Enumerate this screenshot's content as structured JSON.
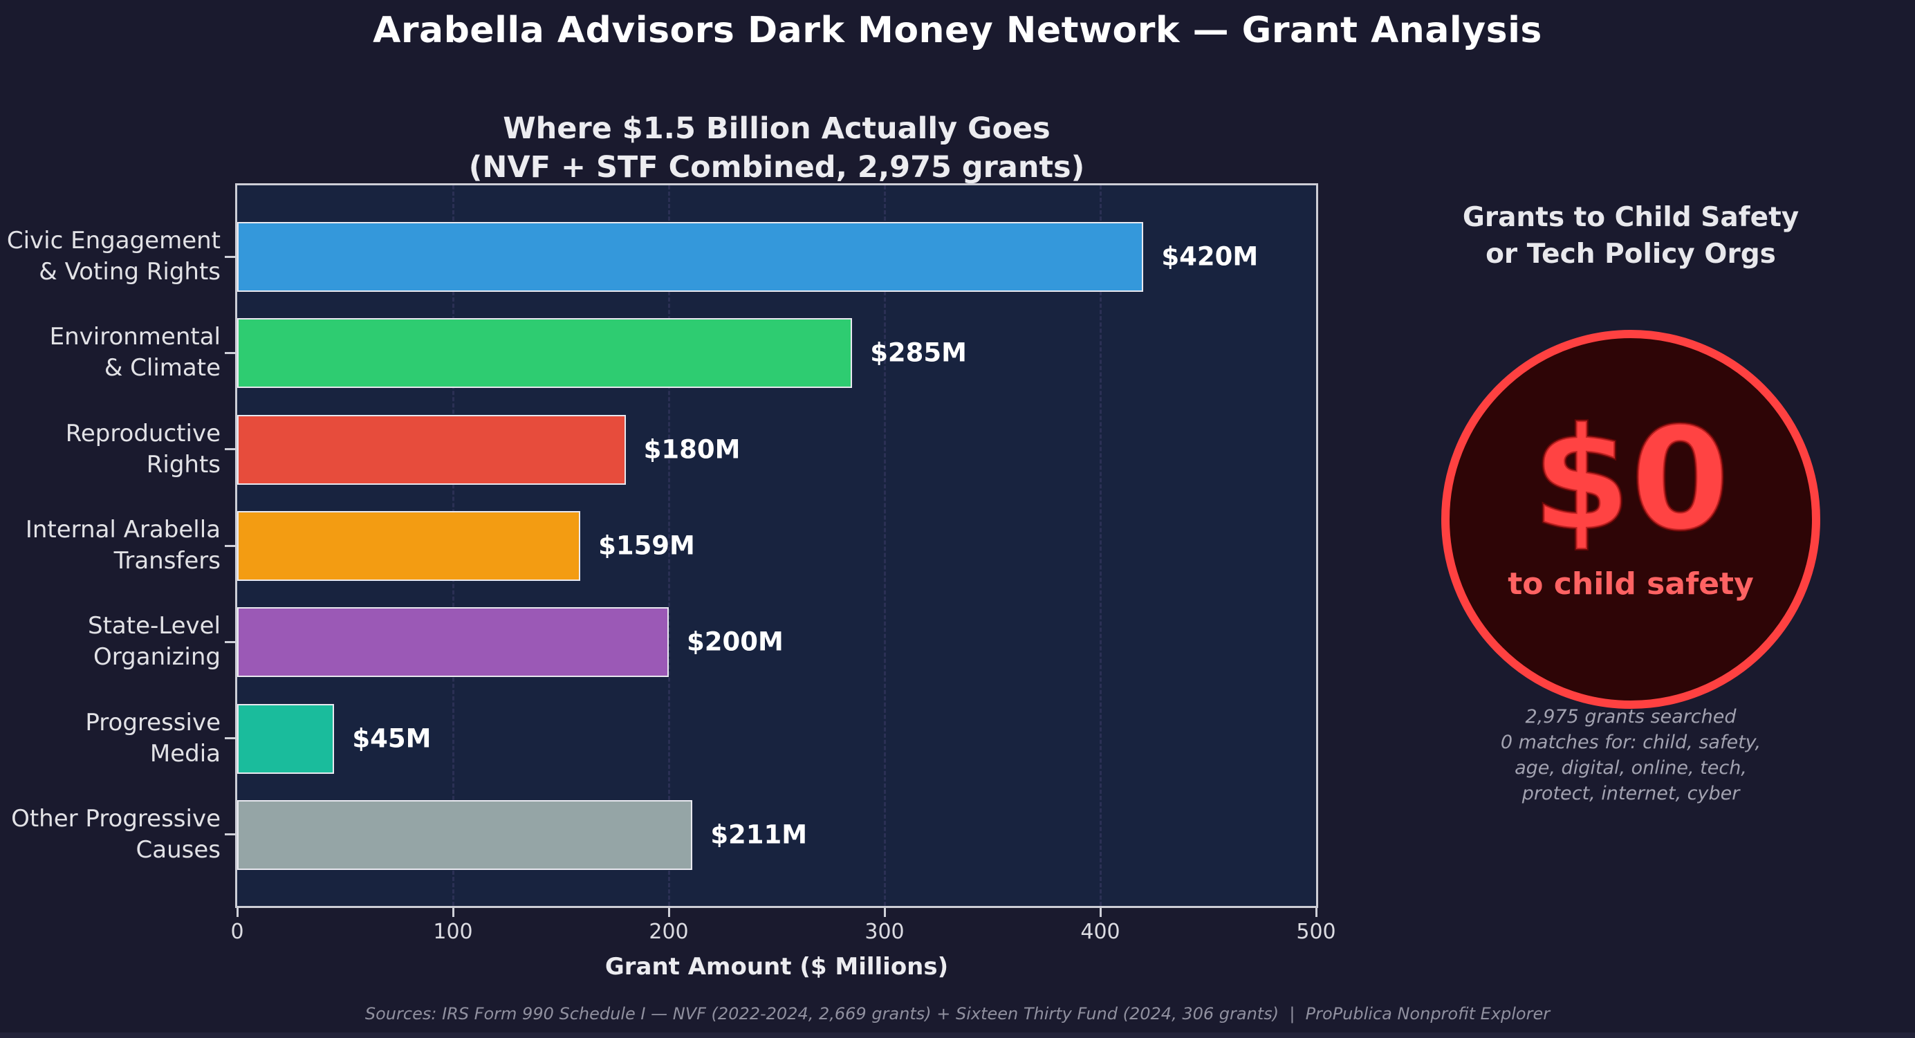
{
  "page": {
    "title": "Arabella Advisors Dark Money Network — Grant Analysis",
    "background": "#1a1a2e"
  },
  "chart_data": {
    "type": "bar",
    "orientation": "horizontal",
    "title_lines": [
      "Where $1.5 Billion Actually Goes",
      "(NVF + STF Combined, 2,975 grants)"
    ],
    "categories": [
      "Civic Engagement & Voting Rights",
      "Environmental & Climate",
      "Reproductive Rights",
      "Internal Arabella Transfers",
      "State-Level Organizing",
      "Progressive Media",
      "Other Progressive Causes"
    ],
    "category_label_lines": [
      [
        "Civic Engagement",
        "& Voting Rights"
      ],
      [
        "Environmental",
        "& Climate"
      ],
      [
        "Reproductive",
        "Rights"
      ],
      [
        "Internal Arabella",
        "Transfers"
      ],
      [
        "State-Level",
        "Organizing"
      ],
      [
        "Progressive",
        "Media"
      ],
      [
        "Other Progressive",
        "Causes"
      ]
    ],
    "values": [
      420,
      285,
      180,
      159,
      200,
      45,
      211
    ],
    "value_labels": [
      "$420M",
      "$285M",
      "$180M",
      "$159M",
      "$200M",
      "$45M",
      "$211M"
    ],
    "bar_colors": [
      "#3498db",
      "#2ecc71",
      "#e74c3c",
      "#f39c12",
      "#9b59b6",
      "#1abc9c",
      "#95a5a6"
    ],
    "xlabel": "Grant Amount ($ Millions)",
    "xlim": [
      0,
      500
    ],
    "xticks": [
      0,
      100,
      200,
      300,
      400,
      500
    ],
    "grid": "vertical-dashed",
    "legend": "none",
    "plot_background": "#18233f",
    "bar_edge_color": "#e9e9f0"
  },
  "right_panel": {
    "heading_lines": [
      "Grants to Child Safety",
      "or Tech Policy Orgs"
    ],
    "zero_amount": "$0",
    "zero_caption": "to child safety",
    "circle_border_color": "#ff4141",
    "circle_fill_color": "#2e0506",
    "amount_color": "#ff4343",
    "caption_color": "#ff6363",
    "note_lines": [
      "2,975 grants searched",
      "0 matches for: child, safety,",
      "age, digital, online, tech,",
      "protect, internet, cyber"
    ]
  },
  "footer": {
    "source_text": "Sources: IRS Form 990 Schedule I — NVF (2022-2024, 2,669 grants) + Sixteen Thirty Fund (2024, 306 grants)  |  ProPublica Nonprofit Explorer"
  }
}
